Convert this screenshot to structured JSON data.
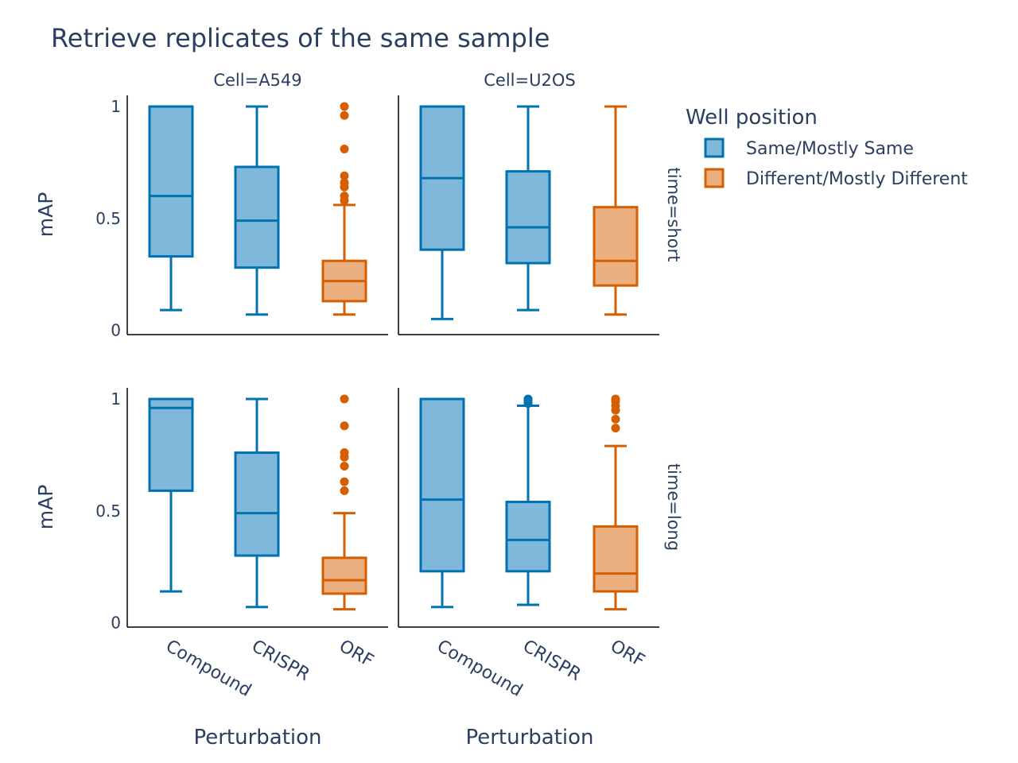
{
  "chart_data": {
    "type": "box",
    "title": "Retrieve replicates of the same sample",
    "xlabel": "Perturbation",
    "ylabel": "mAP",
    "ylim": [
      0,
      1.05
    ],
    "yticks": [
      "0",
      "0.5",
      "1"
    ],
    "ytick_values": [
      0,
      0.5,
      1
    ],
    "categories": [
      "Compound",
      "CRISPR",
      "ORF"
    ],
    "category_group": [
      "same",
      "same",
      "different"
    ],
    "column_facets": [
      "Cell=A549",
      "Cell=U2OS"
    ],
    "row_facets": [
      "time=short",
      "time=long"
    ],
    "legend": {
      "title": "Well position",
      "position": "top-right",
      "items": [
        {
          "key": "same",
          "label": "Same/Mostly Same",
          "color": "#0072b2",
          "fill": "#80b8db"
        },
        {
          "key": "different",
          "label": "Different/Mostly Different",
          "color": "#d55e00",
          "fill": "#ebae7f"
        }
      ]
    },
    "panels": [
      {
        "row": 0,
        "col": 0,
        "boxes": [
          {
            "category": "Compound",
            "lower_whisker": 0.09,
            "q1": 0.33,
            "median": 0.6,
            "q3": 1.0,
            "upper_whisker": 1.0,
            "outliers": []
          },
          {
            "category": "CRISPR",
            "lower_whisker": 0.07,
            "q1": 0.28,
            "median": 0.49,
            "q3": 0.73,
            "upper_whisker": 1.0,
            "outliers": []
          },
          {
            "category": "ORF",
            "lower_whisker": 0.07,
            "q1": 0.13,
            "median": 0.22,
            "q3": 0.31,
            "upper_whisker": 0.56,
            "outliers": [
              0.58,
              0.6,
              0.64,
              0.66,
              0.69,
              0.81,
              0.96,
              1.0
            ]
          }
        ]
      },
      {
        "row": 0,
        "col": 1,
        "boxes": [
          {
            "category": "Compound",
            "lower_whisker": 0.05,
            "q1": 0.36,
            "median": 0.68,
            "q3": 1.0,
            "upper_whisker": 1.0,
            "outliers": []
          },
          {
            "category": "CRISPR",
            "lower_whisker": 0.09,
            "q1": 0.3,
            "median": 0.46,
            "q3": 0.71,
            "upper_whisker": 1.0,
            "outliers": []
          },
          {
            "category": "ORF",
            "lower_whisker": 0.07,
            "q1": 0.2,
            "median": 0.31,
            "q3": 0.55,
            "upper_whisker": 1.0,
            "outliers": []
          }
        ]
      },
      {
        "row": 1,
        "col": 0,
        "boxes": [
          {
            "category": "Compound",
            "lower_whisker": 0.14,
            "q1": 0.59,
            "median": 0.96,
            "q3": 1.0,
            "upper_whisker": 1.0,
            "outliers": []
          },
          {
            "category": "CRISPR",
            "lower_whisker": 0.07,
            "q1": 0.3,
            "median": 0.49,
            "q3": 0.76,
            "upper_whisker": 1.0,
            "outliers": []
          },
          {
            "category": "ORF",
            "lower_whisker": 0.06,
            "q1": 0.13,
            "median": 0.19,
            "q3": 0.29,
            "upper_whisker": 0.49,
            "outliers": [
              0.59,
              0.63,
              0.7,
              0.74,
              0.76,
              0.88,
              1.0
            ]
          }
        ]
      },
      {
        "row": 1,
        "col": 1,
        "boxes": [
          {
            "category": "Compound",
            "lower_whisker": 0.07,
            "q1": 0.23,
            "median": 0.55,
            "q3": 1.0,
            "upper_whisker": 1.0,
            "outliers": []
          },
          {
            "category": "CRISPR",
            "lower_whisker": 0.08,
            "q1": 0.23,
            "median": 0.37,
            "q3": 0.54,
            "upper_whisker": 0.97,
            "outliers": [
              0.98,
              0.99,
              1.0
            ]
          },
          {
            "category": "ORF",
            "lower_whisker": 0.06,
            "q1": 0.14,
            "median": 0.22,
            "q3": 0.43,
            "upper_whisker": 0.79,
            "outliers": [
              0.87,
              0.91,
              0.95,
              0.97,
              0.99,
              1.0
            ]
          }
        ]
      }
    ]
  }
}
